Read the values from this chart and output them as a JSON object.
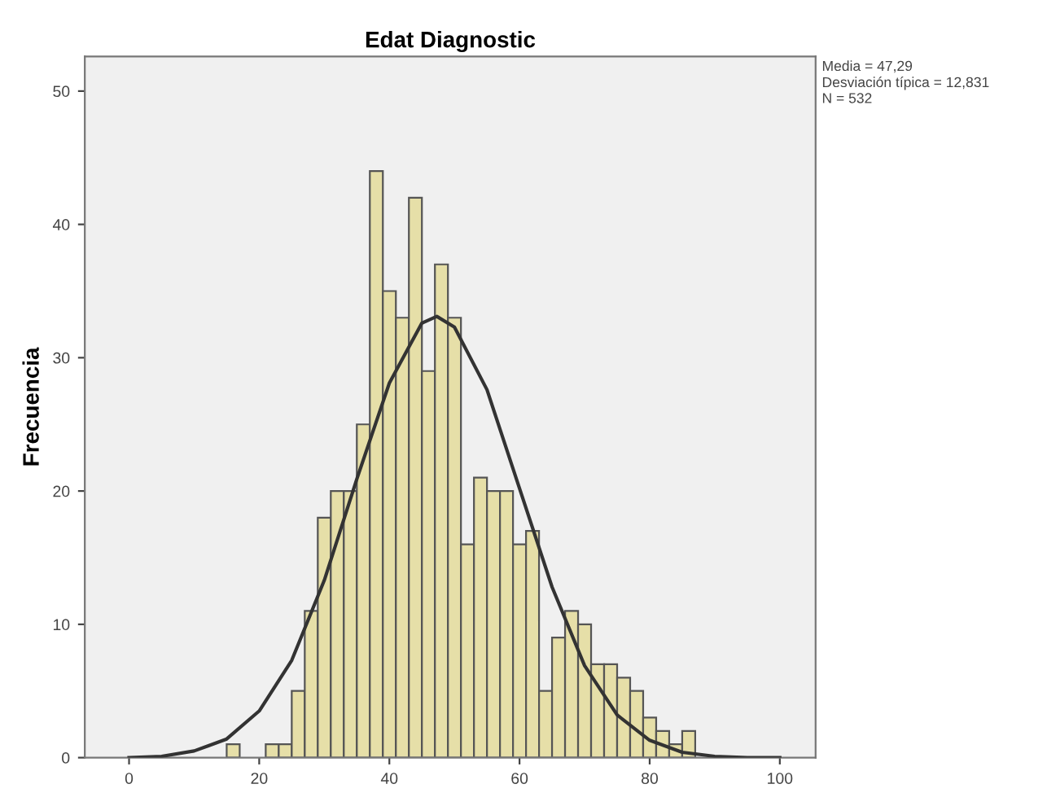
{
  "chart_data": {
    "type": "histogram",
    "title": "Edat Diagnostic",
    "ylabel": "Frecuencia",
    "bins": [
      15,
      17,
      19,
      21,
      23,
      25,
      27,
      29,
      31,
      33,
      35,
      37,
      39,
      41,
      43,
      45,
      47,
      49,
      51,
      53,
      55,
      57,
      59,
      61,
      63,
      65,
      67,
      69,
      71,
      73,
      75,
      77,
      79,
      81,
      83,
      85,
      87
    ],
    "values": [
      1,
      0,
      0,
      1,
      1,
      5,
      11,
      18,
      20,
      20,
      25,
      44,
      35,
      33,
      42,
      29,
      37,
      33,
      16,
      21,
      20,
      20,
      16,
      17,
      5,
      9,
      11,
      10,
      7,
      7,
      6,
      5,
      3,
      2,
      1,
      2
    ],
    "color": "#e6dfa8",
    "series": [
      {
        "type": "line",
        "color": "#333333",
        "x": [
          0,
          5,
          10,
          15,
          20,
          25,
          30,
          35,
          40,
          45,
          47.29,
          50,
          55,
          60,
          65,
          70,
          75,
          80,
          85,
          90,
          95,
          100
        ],
        "values": [
          0,
          0.1,
          0.5,
          1.4,
          3.5,
          7.3,
          13.3,
          20.9,
          28.1,
          32.6,
          33.1,
          32.3,
          27.6,
          20.2,
          12.8,
          6.9,
          3.2,
          1.3,
          0.4,
          0.1,
          0,
          0
        ]
      }
    ],
    "xlim": [
      -6.8,
      105.5
    ],
    "xticks": [
      0,
      20,
      40,
      60,
      80,
      100
    ],
    "ylim": [
      0,
      52.6
    ],
    "yticks": [
      0,
      10,
      20,
      30,
      40,
      50
    ],
    "grid": false,
    "annotations": [
      "Media = 47,29",
      "Desviación típica = 12,831",
      "N = 532"
    ]
  }
}
